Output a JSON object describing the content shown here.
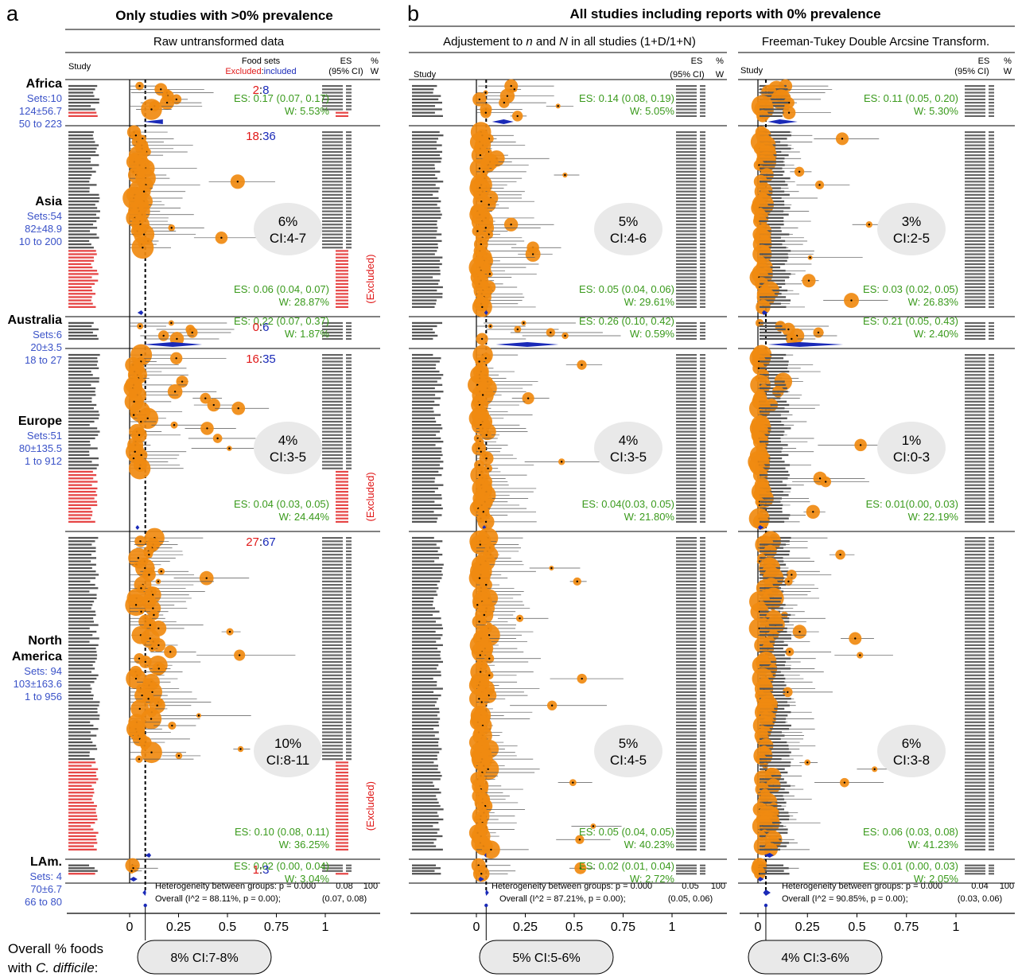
{
  "colors": {
    "green": "#3a9a1c",
    "red": "#e01818",
    "blue": "#3a52c8",
    "orange": "#f08a10",
    "navy": "#1a2ab8",
    "pill": "#e9e9e9"
  },
  "figure": {
    "panel_a_letter": "a",
    "panel_a_title": "Only studies with >0% prevalence",
    "panel_a_subtitle": "Raw untransformed data",
    "panel_b_letter": "b",
    "panel_b_title": "All studies including reports with 0% prevalence",
    "panel_b1_subtitle_pre": "Adjustement to ",
    "panel_b1_subtitle_n": "n",
    "panel_b1_subtitle_mid": " and ",
    "panel_b1_subtitle_N": "N",
    "panel_b1_subtitle_post": " in all studies (1+D/1+N)",
    "panel_b2_subtitle": "Freeman-Tukey Double Arcsine Transform.",
    "study_header": "Study",
    "food_sets_header": "Food sets",
    "excluded_header": "Excluded",
    "included_header": "included",
    "es_header": "ES",
    "ci_header": "(95% CI)",
    "pct_header": "%",
    "w_header": "W",
    "excluded_label": "(Excluded)",
    "overall_label_line1": "Overall % foods",
    "overall_label_line2_pre": "with ",
    "overall_label_line2_em": "C. difficile",
    "overall_label_line2_post": ":"
  },
  "regions": [
    {
      "name_line1": "Africa",
      "name_line2": "",
      "sets": "Sets:10",
      "mean": "124±56.7",
      "range": "50 to 223"
    },
    {
      "name_line1": "Asia",
      "name_line2": "",
      "sets": "Sets:54",
      "mean": "82±48.9",
      "range": "10 to 200"
    },
    {
      "name_line1": "Australia",
      "name_line2": "",
      "sets": "Sets:6",
      "mean": "20±3.5",
      "range": "18 to 27"
    },
    {
      "name_line1": "Europe",
      "name_line2": "",
      "sets": "Sets:51",
      "mean": "80±135.5",
      "range": "1 to 912"
    },
    {
      "name_line1": "North",
      "name_line2": "America",
      "sets": "Sets: 94",
      "mean": "103±163.6",
      "range": "1 to 956"
    },
    {
      "name_line1": "LAm.",
      "name_line2": "",
      "sets": "Sets: 4",
      "mean": "70±6.7",
      "range": "66 to 80"
    }
  ],
  "panels": [
    {
      "id": "a",
      "groups": [
        {
          "excluded": "2",
          "included": "8",
          "es": "ES: 0.17 (0.07, 0.17)",
          "w": "W: 5.53%",
          "bubble": null
        },
        {
          "excluded": "18",
          "included": "36",
          "es": "ES: 0.06 (0.04, 0.07)",
          "w": "W: 28.87%",
          "bubble_line1": "6%",
          "bubble_line2": "CI:4-7"
        },
        {
          "excluded": "0",
          "included": "6",
          "es": "ES: 0.22 (0.07, 0.37)",
          "w": "W: 1.87%",
          "bubble": null
        },
        {
          "excluded": "16",
          "included": "35",
          "es": "ES: 0.04 (0.03, 0.05)",
          "w": "W: 24.44%",
          "bubble_line1": "4%",
          "bubble_line2": "CI:3-5"
        },
        {
          "excluded": "27",
          "included": "67",
          "es": "ES: 0.10 (0.08, 0.11)",
          "w": "W: 36.25%",
          "bubble_line1": "10%",
          "bubble_line2": "CI:8-11"
        },
        {
          "excluded": "1",
          "included": "3",
          "es": "ES: 0.02 (0.00, 0.04)",
          "w": "W: 3.04%",
          "bubble": null
        }
      ],
      "heterogeneity": "Heterogeneity between groups: p = 0.000",
      "overall": "Overall  (I^2 = 88.11%, p = 0.00);",
      "overall_es": "0.08",
      "overall_ci": "(0.07, 0.08)",
      "overall_w": "100",
      "overall_pill": "8% CI:7-8%"
    },
    {
      "id": "b1",
      "groups": [
        {
          "es": "ES: 0.14 (0.08, 0.19)",
          "w": "W: 5.05%"
        },
        {
          "es": "ES: 0.05 (0.04, 0.06)",
          "w": "W: 29.61%",
          "bubble_line1": "5%",
          "bubble_line2": "CI:4-6"
        },
        {
          "es": "ES: 0.26 (0.10, 0.42)",
          "w": "W: 0.59%"
        },
        {
          "es": "ES: 0.04(0.03, 0.05)",
          "w": "W: 21.80%",
          "bubble_line1": "4%",
          "bubble_line2": "CI:3-5"
        },
        {
          "es": "ES: 0.05 (0.04, 0.05)",
          "w": "W: 40.23%",
          "bubble_line1": "5%",
          "bubble_line2": "CI:4-5"
        },
        {
          "es": "ES: 0.02 (0.01, 0.04)",
          "w": "W: 2.72%"
        }
      ],
      "heterogeneity": "Heterogeneity between groups: p = 0.000",
      "overall": "Overall  (I^2 = 87.21%, p = 0.00);",
      "overall_es": "0.05",
      "overall_ci": "(0.05, 0.06)",
      "overall_w": "100",
      "overall_pill": "5% CI:5-6%"
    },
    {
      "id": "b2",
      "groups": [
        {
          "es": "ES: 0.11 (0.05, 0.20)",
          "w": "W: 5.30%"
        },
        {
          "es": "ES: 0.03 (0.02, 0.05)",
          "w": "W: 26.83%",
          "bubble_line1": "3%",
          "bubble_line2": "CI:2-5"
        },
        {
          "es": "ES: 0.21 (0.05, 0.43)",
          "w": "W: 2.40%"
        },
        {
          "es": "ES: 0.01(0.00, 0.03)",
          "w": "W: 22.19%",
          "bubble_line1": "1%",
          "bubble_line2": "CI:0-3"
        },
        {
          "es": "ES: 0.06 (0.03, 0.08)",
          "w": "W: 41.23%",
          "bubble_line1": "6%",
          "bubble_line2": "CI:3-8"
        },
        {
          "es": "ES: 0.01 (0.00, 0.03)",
          "w": "W: 2.05%"
        }
      ],
      "heterogeneity": "Heterogeneity between groups: p = 0.000",
      "overall": "Overall  (I^2 = 90.85%, p = 0.00);",
      "overall_es": "0.04",
      "overall_ci": "(0.03, 0.06)",
      "overall_w": "100",
      "overall_pill": "4% CI:3-6%"
    }
  ],
  "chart_data": [
    {
      "type": "scatter",
      "title": "Only studies with >0% prevalence",
      "subtitle": "Raw untransformed data",
      "xlim": [
        0,
        1
      ],
      "xticks": [
        "0",
        "0.25",
        "0.5",
        "0.75",
        "1"
      ],
      "series": [
        {
          "name": "Africa",
          "pooled": 0.17,
          "ci": [
            0.07,
            0.17
          ],
          "weight_pct": 5.53,
          "excluded": 2,
          "included": 8
        },
        {
          "name": "Asia",
          "pooled": 0.06,
          "ci": [
            0.04,
            0.07
          ],
          "weight_pct": 28.87,
          "excluded": 18,
          "included": 36
        },
        {
          "name": "Australia",
          "pooled": 0.22,
          "ci": [
            0.07,
            0.37
          ],
          "weight_pct": 1.87,
          "excluded": 0,
          "included": 6
        },
        {
          "name": "Europe",
          "pooled": 0.04,
          "ci": [
            0.03,
            0.05
          ],
          "weight_pct": 24.44,
          "excluded": 16,
          "included": 35
        },
        {
          "name": "North America",
          "pooled": 0.1,
          "ci": [
            0.08,
            0.11
          ],
          "weight_pct": 36.25,
          "excluded": 27,
          "included": 67
        },
        {
          "name": "LAm.",
          "pooled": 0.02,
          "ci": [
            0.0,
            0.04
          ],
          "weight_pct": 3.04,
          "excluded": 1,
          "included": 3
        }
      ],
      "overall": {
        "es": 0.08,
        "ci": [
          0.07,
          0.08
        ],
        "i2": "88.11%"
      }
    },
    {
      "type": "scatter",
      "title": "All studies including reports with 0% prevalence",
      "subtitle": "Adjustement to n and N in all studies (1+D/1+N)",
      "xlim": [
        0,
        1
      ],
      "xticks": [
        "0",
        "0.25",
        "0.5",
        "0.75",
        "1"
      ],
      "series": [
        {
          "name": "Africa",
          "pooled": 0.14,
          "ci": [
            0.08,
            0.19
          ],
          "weight_pct": 5.05
        },
        {
          "name": "Asia",
          "pooled": 0.05,
          "ci": [
            0.04,
            0.06
          ],
          "weight_pct": 29.61
        },
        {
          "name": "Australia",
          "pooled": 0.26,
          "ci": [
            0.1,
            0.42
          ],
          "weight_pct": 0.59
        },
        {
          "name": "Europe",
          "pooled": 0.04,
          "ci": [
            0.03,
            0.05
          ],
          "weight_pct": 21.8
        },
        {
          "name": "North America",
          "pooled": 0.05,
          "ci": [
            0.04,
            0.05
          ],
          "weight_pct": 40.23
        },
        {
          "name": "LAm.",
          "pooled": 0.02,
          "ci": [
            0.01,
            0.04
          ],
          "weight_pct": 2.72
        }
      ],
      "overall": {
        "es": 0.05,
        "ci": [
          0.05,
          0.06
        ],
        "i2": "87.21%"
      }
    },
    {
      "type": "scatter",
      "title": "All studies including reports with 0% prevalence",
      "subtitle": "Freeman-Tukey Double Arcsine Transform.",
      "xlim": [
        0,
        1
      ],
      "xticks": [
        "0",
        "0.25",
        "0.5",
        "0.75",
        "1"
      ],
      "series": [
        {
          "name": "Africa",
          "pooled": 0.11,
          "ci": [
            0.05,
            0.2
          ],
          "weight_pct": 5.3
        },
        {
          "name": "Asia",
          "pooled": 0.03,
          "ci": [
            0.02,
            0.05
          ],
          "weight_pct": 26.83
        },
        {
          "name": "Australia",
          "pooled": 0.21,
          "ci": [
            0.05,
            0.43
          ],
          "weight_pct": 2.4
        },
        {
          "name": "Europe",
          "pooled": 0.01,
          "ci": [
            0.0,
            0.03
          ],
          "weight_pct": 22.19
        },
        {
          "name": "North America",
          "pooled": 0.06,
          "ci": [
            0.03,
            0.08
          ],
          "weight_pct": 41.23
        },
        {
          "name": "LAm.",
          "pooled": 0.01,
          "ci": [
            0.0,
            0.03
          ],
          "weight_pct": 2.05
        }
      ],
      "overall": {
        "es": 0.04,
        "ci": [
          0.03,
          0.06
        ],
        "i2": "90.85%"
      }
    }
  ]
}
